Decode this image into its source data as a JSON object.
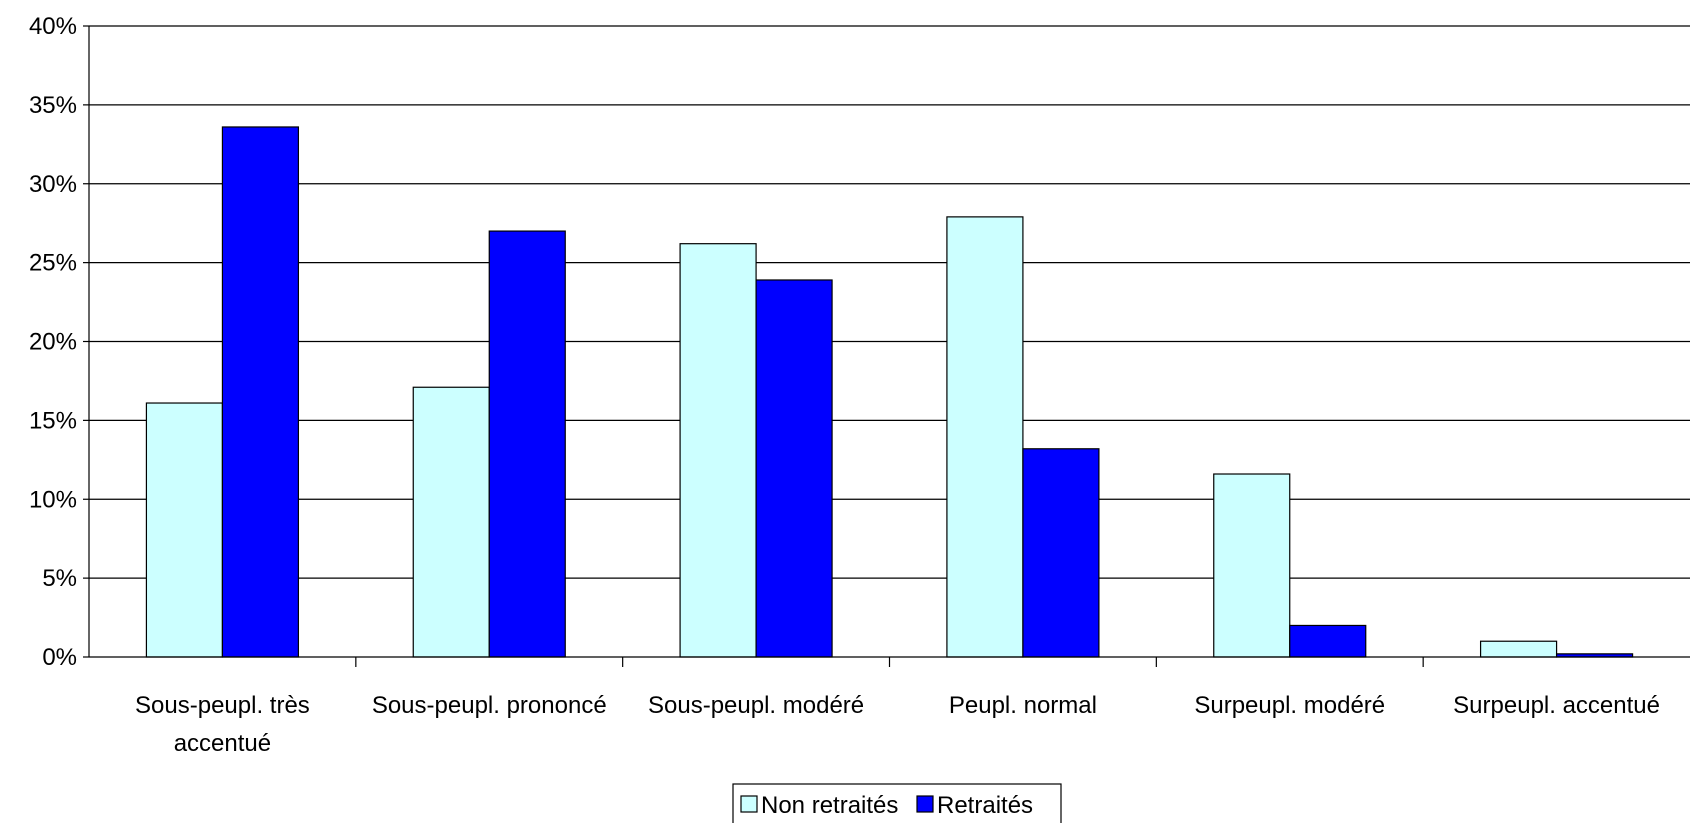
{
  "chart_data": {
    "type": "bar",
    "title": "",
    "xlabel": "",
    "ylabel": "",
    "categories": [
      [
        "Sous-peupl. très",
        "accentué"
      ],
      [
        "Sous-peupl. prononcé"
      ],
      [
        "Sous-peupl. modéré"
      ],
      [
        "Peupl. normal"
      ],
      [
        "Surpeupl. modéré"
      ],
      [
        "Surpeupl. accentué"
      ]
    ],
    "series": [
      {
        "name": "Non retraités",
        "color": "#ccffff",
        "values": [
          16.1,
          17.1,
          26.2,
          27.9,
          11.6,
          1.0
        ]
      },
      {
        "name": "Retraités",
        "color": "#0000ff",
        "values": [
          33.6,
          27.0,
          23.9,
          13.2,
          2.0,
          0.2
        ]
      }
    ],
    "ylim": [
      0,
      40
    ],
    "yticks": [
      "0%",
      "5%",
      "10%",
      "15%",
      "20%",
      "25%",
      "30%",
      "35%",
      "40%"
    ],
    "grid": true,
    "legend_position": "bottom"
  }
}
